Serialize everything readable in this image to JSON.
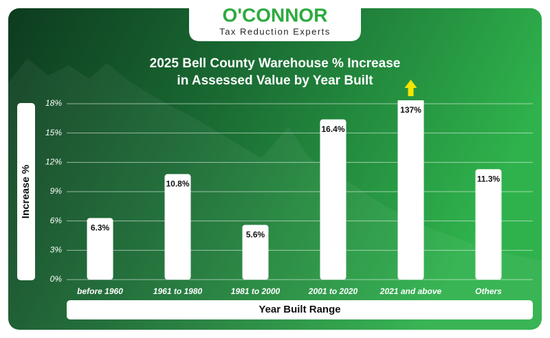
{
  "logo": {
    "brand": "O'CONNOR",
    "tagline": "Tax Reduction Experts"
  },
  "chart_data": {
    "type": "bar",
    "title": [
      "2025 Bell County Warehouse % Increase",
      "in Assessed Value by Year Built"
    ],
    "y_label": "Increase %",
    "x_label": "Year Built Range",
    "categories": [
      "before 1960",
      "1961 to 1980",
      "1981 to 2000",
      "2001 to 2020",
      "2021 and above",
      "Others"
    ],
    "values": [
      6.3,
      10.8,
      5.6,
      16.4,
      137,
      11.3
    ],
    "value_labels": [
      "6.3%",
      "10.8%",
      "5.6%",
      "16.4%",
      "137%",
      "11.3%"
    ],
    "color": "#ffffff",
    "ylim": [
      0,
      18
    ],
    "yticks": [
      {
        "value": 0,
        "label": "0%"
      },
      {
        "value": 3,
        "label": "3%"
      },
      {
        "value": 6,
        "label": "6%"
      },
      {
        "value": 9,
        "label": "9%"
      },
      {
        "value": 12,
        "label": "12%"
      },
      {
        "value": 15,
        "label": "15%"
      },
      {
        "value": 18,
        "label": "18%"
      }
    ],
    "grid": true
  }
}
